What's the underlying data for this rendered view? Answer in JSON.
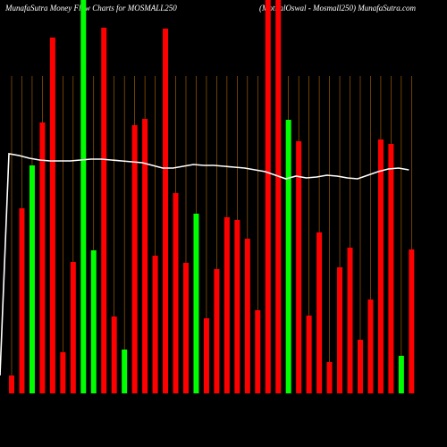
{
  "chart_data": {
    "type": "bar",
    "title": "MunafaSutra  Money Flow  Charts for MOSMALL250",
    "subtitle": "(MotilalOswal - Mosmall250) MunafaSutra.com",
    "values": [
      20,
      207,
      255,
      303,
      398,
      46,
      147,
      440,
      160,
      409,
      86,
      49,
      300,
      307,
      154,
      408,
      224,
      146,
      201,
      84,
      139,
      197,
      194,
      173,
      93,
      440,
      440,
      306,
      282,
      87,
      180,
      35,
      141,
      163,
      60,
      105,
      284,
      279,
      42,
      161
    ],
    "colors": [
      "#ff0000",
      "#ff0000",
      "#00ff00",
      "#ff0000",
      "#ff0000",
      "#ff0000",
      "#ff0000",
      "#00ff00",
      "#00ff00",
      "#ff0000",
      "#ff0000",
      "#00ff00",
      "#ff0000",
      "#ff0000",
      "#ff0000",
      "#ff0000",
      "#ff0000",
      "#ff0000",
      "#00ff00",
      "#ff0000",
      "#ff0000",
      "#ff0000",
      "#ff0000",
      "#ff0000",
      "#ff0000",
      "#ff0000",
      "#ff0000",
      "#00ff00",
      "#ff0000",
      "#ff0000",
      "#ff0000",
      "#ff0000",
      "#ff0000",
      "#ff0000",
      "#ff0000",
      "#ff0000",
      "#ff0000",
      "#ff0000",
      "#00ff00",
      "#ff0000"
    ],
    "line": {
      "color": "#ffffff",
      "values": [
        268,
        266,
        263,
        261,
        260,
        260,
        260,
        261,
        262,
        262,
        261,
        260,
        259,
        258,
        255,
        252,
        252,
        254,
        256,
        255,
        255,
        254,
        253,
        252,
        250,
        248,
        244,
        240,
        243,
        241,
        242,
        244,
        243,
        241,
        240,
        244,
        248,
        251,
        252,
        250
      ]
    },
    "ylim": [
      0,
      440
    ],
    "grid": true,
    "grid_color": "#b86a00"
  }
}
